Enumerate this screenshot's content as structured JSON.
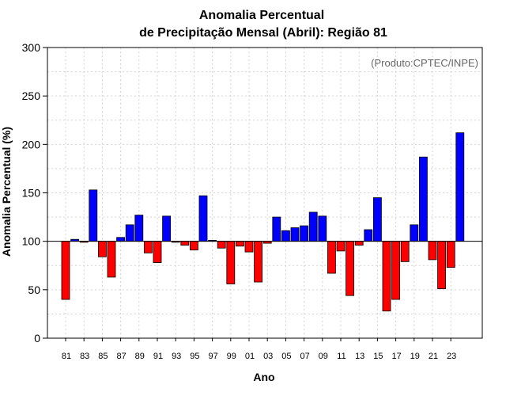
{
  "chart_data": {
    "type": "bar",
    "title": [
      "Anomalia Percentual",
      "de Precipitação Mensal (Abril): Região 81"
    ],
    "xlabel": "Ano",
    "ylabel": "Anomalia Percentual (%)",
    "credit": "(Produto:CPTEC/INPE)",
    "ylim": [
      0,
      300
    ],
    "yticks": [
      0,
      50,
      100,
      150,
      200,
      250,
      300
    ],
    "baseline": 100,
    "grid": true,
    "colors": {
      "above": "#0000ff",
      "below": "#ff0000",
      "edge": "#000000",
      "grid": "#d3d3d3"
    },
    "categories": [
      "81",
      "82",
      "83",
      "84",
      "85",
      "86",
      "87",
      "88",
      "89",
      "90",
      "91",
      "92",
      "93",
      "94",
      "95",
      "96",
      "97",
      "98",
      "99",
      "00",
      "01",
      "02",
      "03",
      "04",
      "05",
      "06",
      "07",
      "08",
      "09",
      "10",
      "11",
      "12",
      "13",
      "14",
      "15",
      "16",
      "17",
      "18",
      "19",
      "20",
      "21",
      "22",
      "23",
      "24"
    ],
    "tick_labels": [
      "81",
      "83",
      "85",
      "87",
      "89",
      "91",
      "93",
      "95",
      "97",
      "99",
      "01",
      "03",
      "05",
      "07",
      "09",
      "11",
      "13",
      "15",
      "17",
      "19",
      "21",
      "23"
    ],
    "values": [
      40,
      102,
      99,
      153,
      84,
      63,
      104,
      117,
      127,
      88,
      78,
      126,
      99,
      96,
      91,
      147,
      101,
      93,
      56,
      95,
      89,
      58,
      98,
      125,
      111,
      114,
      116,
      130,
      126,
      67,
      90,
      44,
      96,
      112,
      145,
      28,
      40,
      79,
      117,
      187,
      81,
      51,
      73,
      212
    ]
  }
}
